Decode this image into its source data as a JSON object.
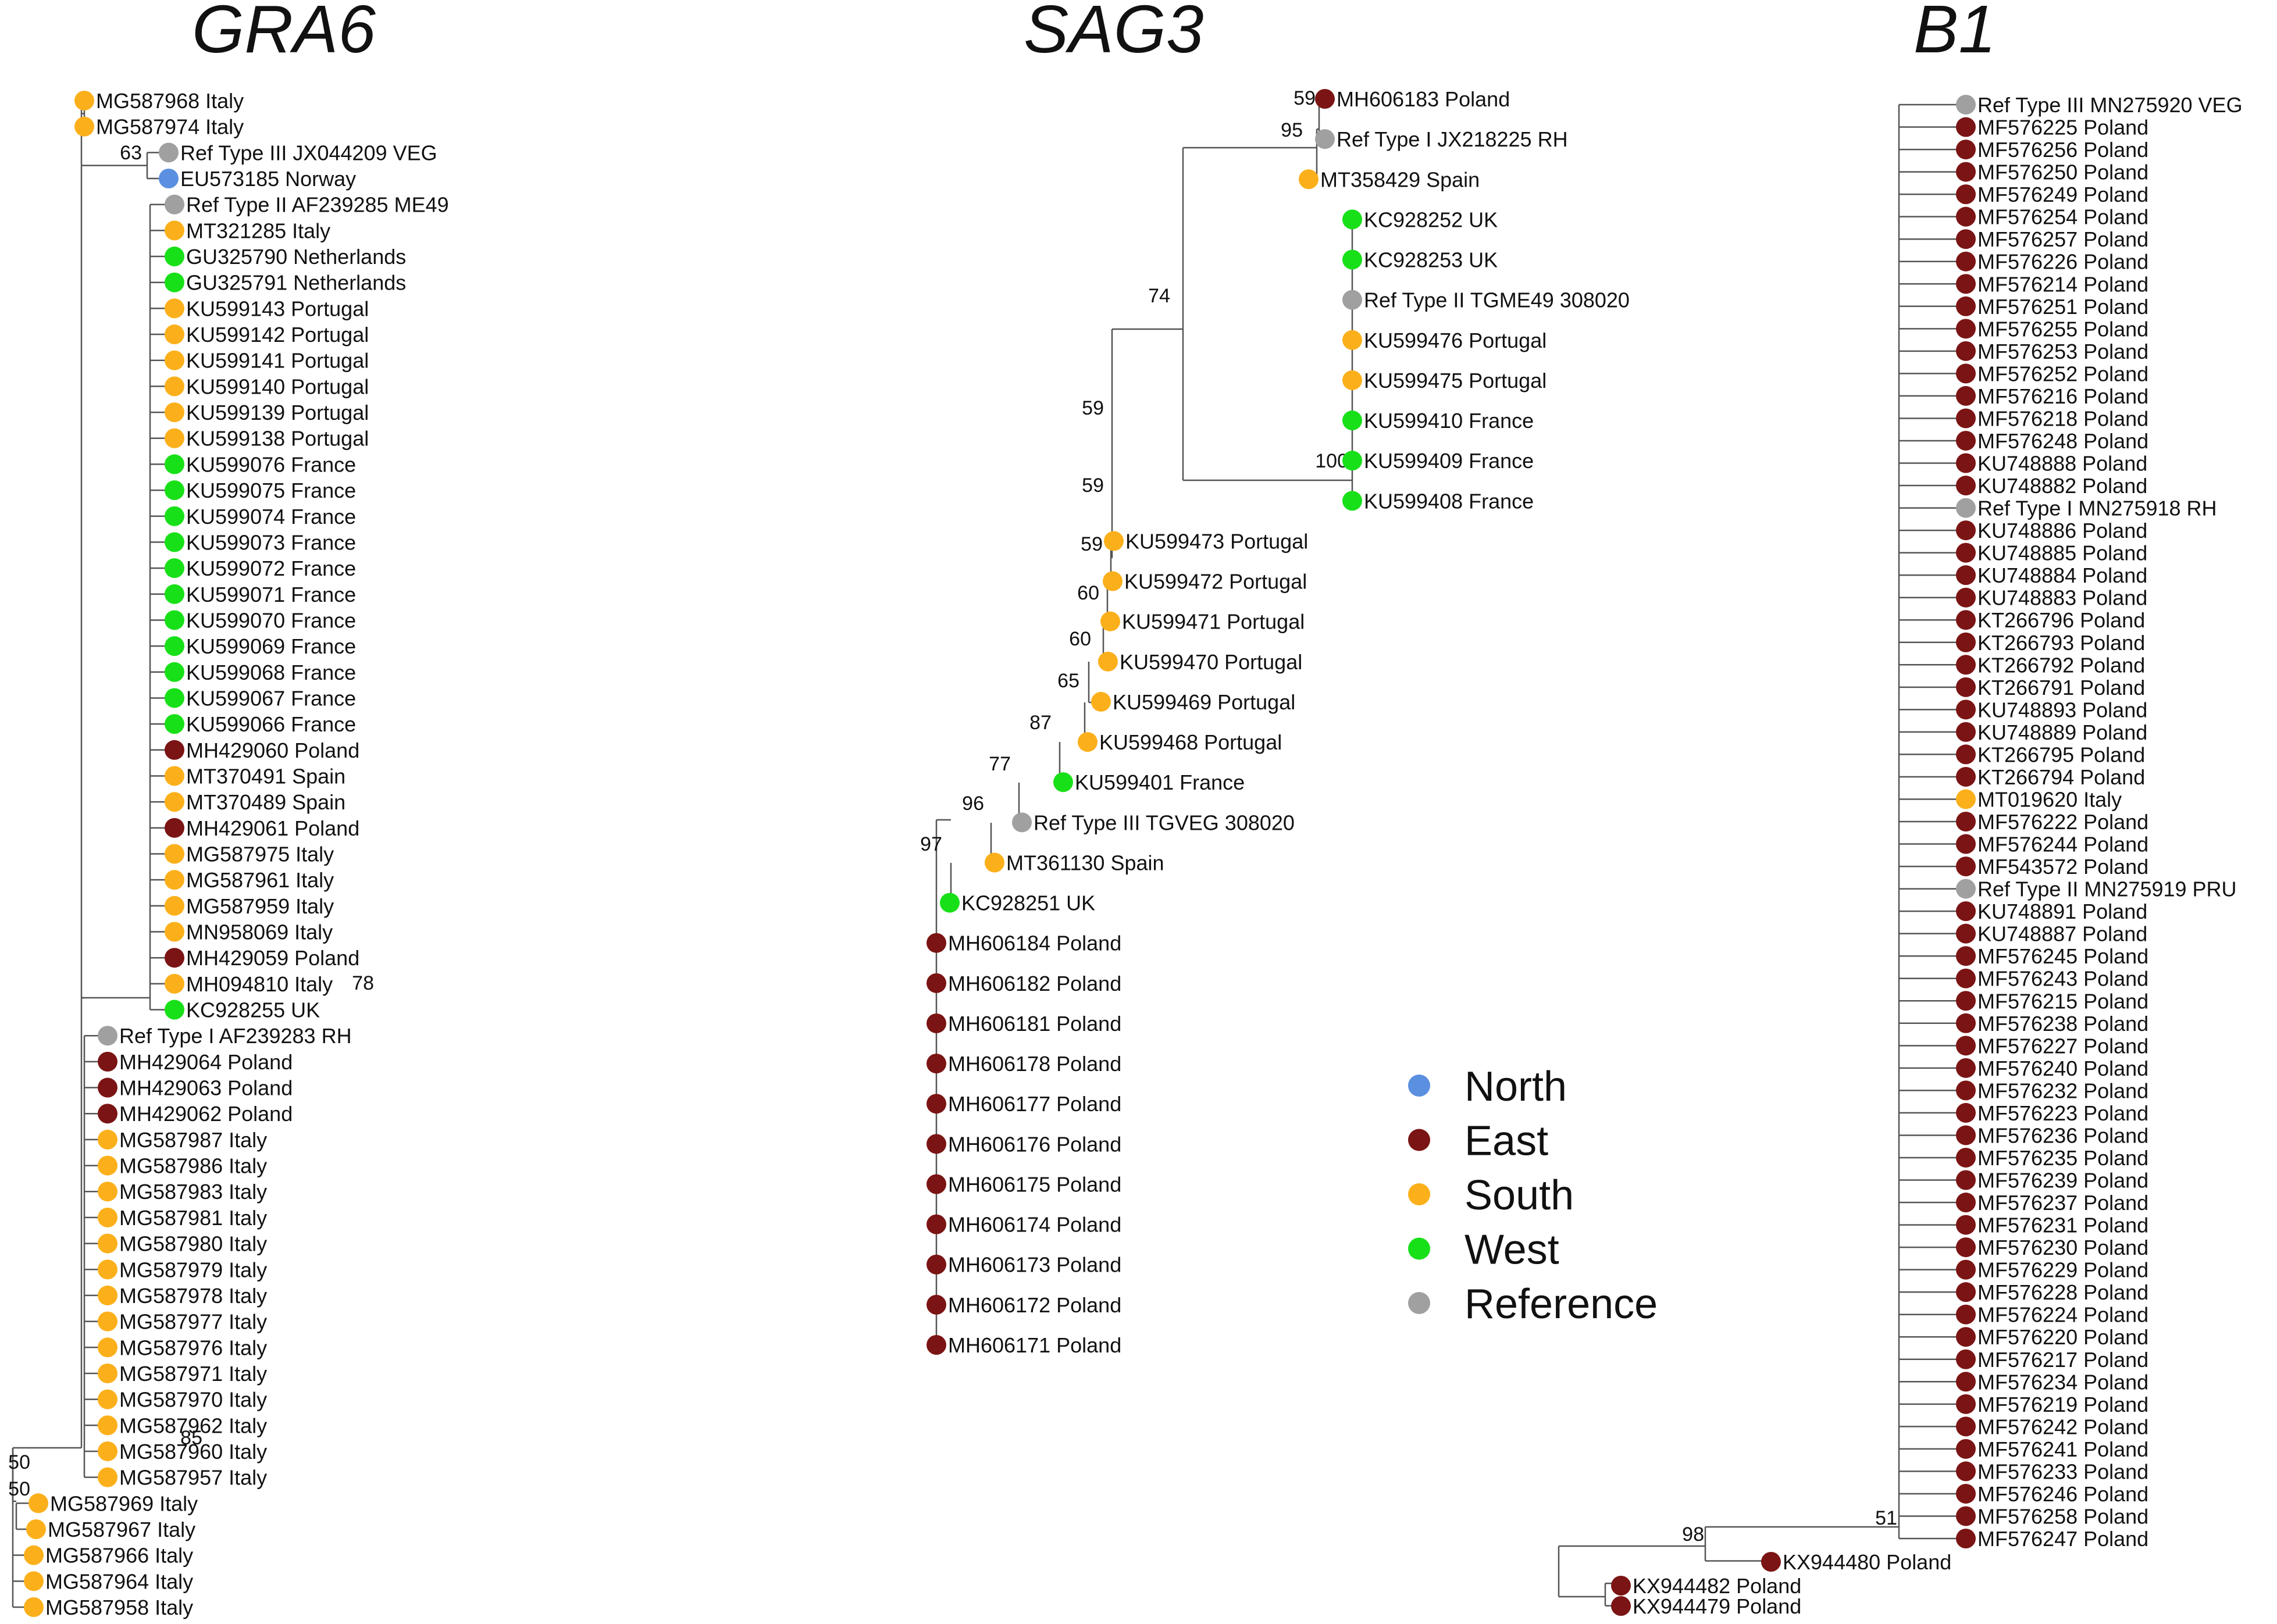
{
  "colors": {
    "North": "#5b8fe0",
    "East": "#7b1414",
    "South": "#fbb01b",
    "West": "#18e018",
    "Reference": "#a0a0a0"
  },
  "legend": [
    {
      "name": "North",
      "label": "North"
    },
    {
      "name": "East",
      "label": "East"
    },
    {
      "name": "South",
      "label": "South"
    },
    {
      "name": "West",
      "label": "West"
    },
    {
      "name": "Reference",
      "label": "Reference"
    }
  ],
  "trees": [
    {
      "id": "gra6",
      "title": "GRA6",
      "bootstrap": [
        "63",
        "78",
        "85",
        "50",
        "50"
      ],
      "leaves": [
        {
          "label": "MG587968 Italy",
          "region": "South"
        },
        {
          "label": "MG587974 Italy",
          "region": "South"
        },
        {
          "label": "Ref Type III JX044209 VEG",
          "region": "Reference"
        },
        {
          "label": "EU573185 Norway",
          "region": "North"
        },
        {
          "label": "Ref Type II AF239285 ME49",
          "region": "Reference"
        },
        {
          "label": "MT321285 Italy",
          "region": "South"
        },
        {
          "label": "GU325790 Netherlands",
          "region": "West"
        },
        {
          "label": "GU325791 Netherlands",
          "region": "West"
        },
        {
          "label": "KU599143 Portugal",
          "region": "South"
        },
        {
          "label": "KU599142 Portugal",
          "region": "South"
        },
        {
          "label": "KU599141 Portugal",
          "region": "South"
        },
        {
          "label": "KU599140 Portugal",
          "region": "South"
        },
        {
          "label": "KU599139 Portugal",
          "region": "South"
        },
        {
          "label": "KU599138 Portugal",
          "region": "South"
        },
        {
          "label": "KU599076 France",
          "region": "West"
        },
        {
          "label": "KU599075 France",
          "region": "West"
        },
        {
          "label": "KU599074 France",
          "region": "West"
        },
        {
          "label": "KU599073 France",
          "region": "West"
        },
        {
          "label": "KU599072 France",
          "region": "West"
        },
        {
          "label": "KU599071 France",
          "region": "West"
        },
        {
          "label": "KU599070 France",
          "region": "West"
        },
        {
          "label": "KU599069 France",
          "region": "West"
        },
        {
          "label": "KU599068 France",
          "region": "West"
        },
        {
          "label": "KU599067 France",
          "region": "West"
        },
        {
          "label": "KU599066 France",
          "region": "West"
        },
        {
          "label": "MH429060 Poland",
          "region": "East"
        },
        {
          "label": "MT370491 Spain",
          "region": "South"
        },
        {
          "label": "MT370489 Spain",
          "region": "South"
        },
        {
          "label": "MH429061 Poland",
          "region": "East"
        },
        {
          "label": "MG587975 Italy",
          "region": "South"
        },
        {
          "label": "MG587961 Italy",
          "region": "South"
        },
        {
          "label": "MG587959 Italy",
          "region": "South"
        },
        {
          "label": "MN958069 Italy",
          "region": "South"
        },
        {
          "label": "MH429059 Poland",
          "region": "East"
        },
        {
          "label": "MH094810 Italy",
          "region": "South"
        },
        {
          "label": "KC928255 UK",
          "region": "West"
        },
        {
          "label": "Ref Type I AF239283 RH",
          "region": "Reference"
        },
        {
          "label": "MH429064 Poland",
          "region": "East"
        },
        {
          "label": "MH429063 Poland",
          "region": "East"
        },
        {
          "label": "MH429062 Poland",
          "region": "East"
        },
        {
          "label": "MG587987 Italy",
          "region": "South"
        },
        {
          "label": "MG587986 Italy",
          "region": "South"
        },
        {
          "label": "MG587983 Italy",
          "region": "South"
        },
        {
          "label": "MG587981 Italy",
          "region": "South"
        },
        {
          "label": "MG587980 Italy",
          "region": "South"
        },
        {
          "label": "MG587979 Italy",
          "region": "South"
        },
        {
          "label": "MG587978 Italy",
          "region": "South"
        },
        {
          "label": "MG587977 Italy",
          "region": "South"
        },
        {
          "label": "MG587976 Italy",
          "region": "South"
        },
        {
          "label": "MG587971 Italy",
          "region": "South"
        },
        {
          "label": "MG587970 Italy",
          "region": "South"
        },
        {
          "label": "MG587962 Italy",
          "region": "South"
        },
        {
          "label": "MG587960 Italy",
          "region": "South"
        },
        {
          "label": "MG587957 Italy",
          "region": "South"
        },
        {
          "label": "MG587969 Italy",
          "region": "South"
        },
        {
          "label": "MG587967 Italy",
          "region": "South"
        },
        {
          "label": "MG587966 Italy",
          "region": "South"
        },
        {
          "label": "MG587964 Italy",
          "region": "South"
        },
        {
          "label": "MG587958 Italy",
          "region": "South"
        }
      ]
    },
    {
      "id": "sag3",
      "title": "SAG3",
      "bootstrap": [
        "59",
        "95",
        "74",
        "100",
        "59",
        "59",
        "59",
        "60",
        "60",
        "65",
        "87",
        "77",
        "96",
        "97"
      ],
      "leaves": [
        {
          "label": "MH606183 Poland",
          "region": "East"
        },
        {
          "label": "Ref Type I JX218225 RH",
          "region": "Reference"
        },
        {
          "label": "MT358429 Spain",
          "region": "South"
        },
        {
          "label": "KC928252 UK",
          "region": "West"
        },
        {
          "label": "KC928253 UK",
          "region": "West"
        },
        {
          "label": "Ref Type II TGME49 308020",
          "region": "Reference"
        },
        {
          "label": "KU599476 Portugal",
          "region": "South"
        },
        {
          "label": "KU599475 Portugal",
          "region": "South"
        },
        {
          "label": "KU599410 France",
          "region": "West"
        },
        {
          "label": "KU599409 France",
          "region": "West"
        },
        {
          "label": "KU599408 France",
          "region": "West"
        },
        {
          "label": "KU599473 Portugal",
          "region": "South"
        },
        {
          "label": "KU599472 Portugal",
          "region": "South"
        },
        {
          "label": "KU599471 Portugal",
          "region": "South"
        },
        {
          "label": "KU599470 Portugal",
          "region": "South"
        },
        {
          "label": "KU599469 Portugal",
          "region": "South"
        },
        {
          "label": "KU599468 Portugal",
          "region": "South"
        },
        {
          "label": "KU599401 France",
          "region": "West"
        },
        {
          "label": "Ref Type III TGVEG 308020",
          "region": "Reference"
        },
        {
          "label": "MT361130 Spain",
          "region": "South"
        },
        {
          "label": "KC928251 UK",
          "region": "West"
        },
        {
          "label": "MH606184 Poland",
          "region": "East"
        },
        {
          "label": "MH606182 Poland",
          "region": "East"
        },
        {
          "label": "MH606181 Poland",
          "region": "East"
        },
        {
          "label": "MH606178 Poland",
          "region": "East"
        },
        {
          "label": "MH606177 Poland",
          "region": "East"
        },
        {
          "label": "MH606176 Poland",
          "region": "East"
        },
        {
          "label": "MH606175 Poland",
          "region": "East"
        },
        {
          "label": "MH606174 Poland",
          "region": "East"
        },
        {
          "label": "MH606173 Poland",
          "region": "East"
        },
        {
          "label": "MH606172 Poland",
          "region": "East"
        },
        {
          "label": "MH606171 Poland",
          "region": "East"
        }
      ]
    },
    {
      "id": "b1",
      "title": "B1",
      "bootstrap": [
        "51",
        "98"
      ],
      "leaves": [
        {
          "label": "Ref Type III MN275920 VEG",
          "region": "Reference"
        },
        {
          "label": "MF576225 Poland",
          "region": "East"
        },
        {
          "label": "MF576256 Poland",
          "region": "East"
        },
        {
          "label": "MF576250 Poland",
          "region": "East"
        },
        {
          "label": "MF576249 Poland",
          "region": "East"
        },
        {
          "label": "MF576254 Poland",
          "region": "East"
        },
        {
          "label": "MF576257 Poland",
          "region": "East"
        },
        {
          "label": "MF576226 Poland",
          "region": "East"
        },
        {
          "label": "MF576214 Poland",
          "region": "East"
        },
        {
          "label": "MF576251 Poland",
          "region": "East"
        },
        {
          "label": "MF576255 Poland",
          "region": "East"
        },
        {
          "label": "MF576253 Poland",
          "region": "East"
        },
        {
          "label": "MF576252 Poland",
          "region": "East"
        },
        {
          "label": "MF576216 Poland",
          "region": "East"
        },
        {
          "label": "MF576218 Poland",
          "region": "East"
        },
        {
          "label": "MF576248 Poland",
          "region": "East"
        },
        {
          "label": "KU748888 Poland",
          "region": "East"
        },
        {
          "label": "KU748882 Poland",
          "region": "East"
        },
        {
          "label": "Ref Type I MN275918 RH",
          "region": "Reference"
        },
        {
          "label": "KU748886 Poland",
          "region": "East"
        },
        {
          "label": "KU748885 Poland",
          "region": "East"
        },
        {
          "label": "KU748884 Poland",
          "region": "East"
        },
        {
          "label": "KU748883 Poland",
          "region": "East"
        },
        {
          "label": "KT266796 Poland",
          "region": "East"
        },
        {
          "label": "KT266793 Poland",
          "region": "East"
        },
        {
          "label": "KT266792 Poland",
          "region": "East"
        },
        {
          "label": "KT266791 Poland",
          "region": "East"
        },
        {
          "label": "KU748893 Poland",
          "region": "East"
        },
        {
          "label": "KU748889 Poland",
          "region": "East"
        },
        {
          "label": "KT266795 Poland",
          "region": "East"
        },
        {
          "label": "KT266794 Poland",
          "region": "East"
        },
        {
          "label": "MT019620 Italy",
          "region": "South"
        },
        {
          "label": "MF576222 Poland",
          "region": "East"
        },
        {
          "label": "MF576244 Poland",
          "region": "East"
        },
        {
          "label": "MF543572 Poland",
          "region": "East"
        },
        {
          "label": "Ref Type II MN275919 PRU",
          "region": "Reference"
        },
        {
          "label": "KU748891 Poland",
          "region": "East"
        },
        {
          "label": "KU748887 Poland",
          "region": "East"
        },
        {
          "label": "MF576245 Poland",
          "region": "East"
        },
        {
          "label": "MF576243 Poland",
          "region": "East"
        },
        {
          "label": "MF576215 Poland",
          "region": "East"
        },
        {
          "label": "MF576238 Poland",
          "region": "East"
        },
        {
          "label": "MF576227 Poland",
          "region": "East"
        },
        {
          "label": "MF576240 Poland",
          "region": "East"
        },
        {
          "label": "MF576232 Poland",
          "region": "East"
        },
        {
          "label": "MF576223 Poland",
          "region": "East"
        },
        {
          "label": "MF576236 Poland",
          "region": "East"
        },
        {
          "label": "MF576235 Poland",
          "region": "East"
        },
        {
          "label": "MF576239 Poland",
          "region": "East"
        },
        {
          "label": "MF576237 Poland",
          "region": "East"
        },
        {
          "label": "MF576231 Poland",
          "region": "East"
        },
        {
          "label": "MF576230 Poland",
          "region": "East"
        },
        {
          "label": "MF576229 Poland",
          "region": "East"
        },
        {
          "label": "MF576228 Poland",
          "region": "East"
        },
        {
          "label": "MF576224 Poland",
          "region": "East"
        },
        {
          "label": "MF576220 Poland",
          "region": "East"
        },
        {
          "label": "MF576217 Poland",
          "region": "East"
        },
        {
          "label": "MF576234 Poland",
          "region": "East"
        },
        {
          "label": "MF576219 Poland",
          "region": "East"
        },
        {
          "label": "MF576242 Poland",
          "region": "East"
        },
        {
          "label": "MF576241 Poland",
          "region": "East"
        },
        {
          "label": "MF576233 Poland",
          "region": "East"
        },
        {
          "label": "MF576246 Poland",
          "region": "East"
        },
        {
          "label": "MF576258 Poland",
          "region": "East"
        },
        {
          "label": "MF576247 Poland",
          "region": "East"
        },
        {
          "label": "KX944480 Poland",
          "region": "East"
        },
        {
          "label": "KX944482 Poland",
          "region": "East"
        },
        {
          "label": "KX944479 Poland",
          "region": "East"
        }
      ]
    }
  ]
}
